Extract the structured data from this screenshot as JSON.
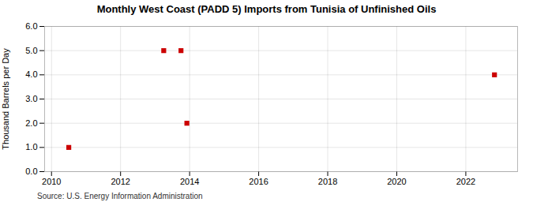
{
  "chart_data": {
    "type": "scatter",
    "title": "Monthly West Coast (PADD 5) Imports from Tunisia of Unfinished Oils",
    "ylabel": "Thousand Barrels per Day",
    "source": "Source: U.S. Energy Information Administration",
    "x": [
      2010.5,
      2013.25,
      2013.75,
      2013.92,
      2022.83
    ],
    "values": [
      1.0,
      5.0,
      5.0,
      2.0,
      4.0
    ],
    "color": "#cc0000",
    "marker": "square",
    "xlim": [
      2009.8,
      2023.5
    ],
    "ylim": [
      0.0,
      6.0
    ],
    "xticks": [
      2010,
      2012,
      2014,
      2016,
      2018,
      2020,
      2022
    ],
    "yticks": [
      {
        "value": 0,
        "label": "0.0"
      },
      {
        "value": 1,
        "label": "1.0"
      },
      {
        "value": 2,
        "label": "2.0"
      },
      {
        "value": 3,
        "label": "3.0"
      },
      {
        "value": 4,
        "label": "4.0"
      },
      {
        "value": 5,
        "label": "5.0"
      },
      {
        "value": 6,
        "label": "6.0"
      }
    ],
    "grid": true
  }
}
